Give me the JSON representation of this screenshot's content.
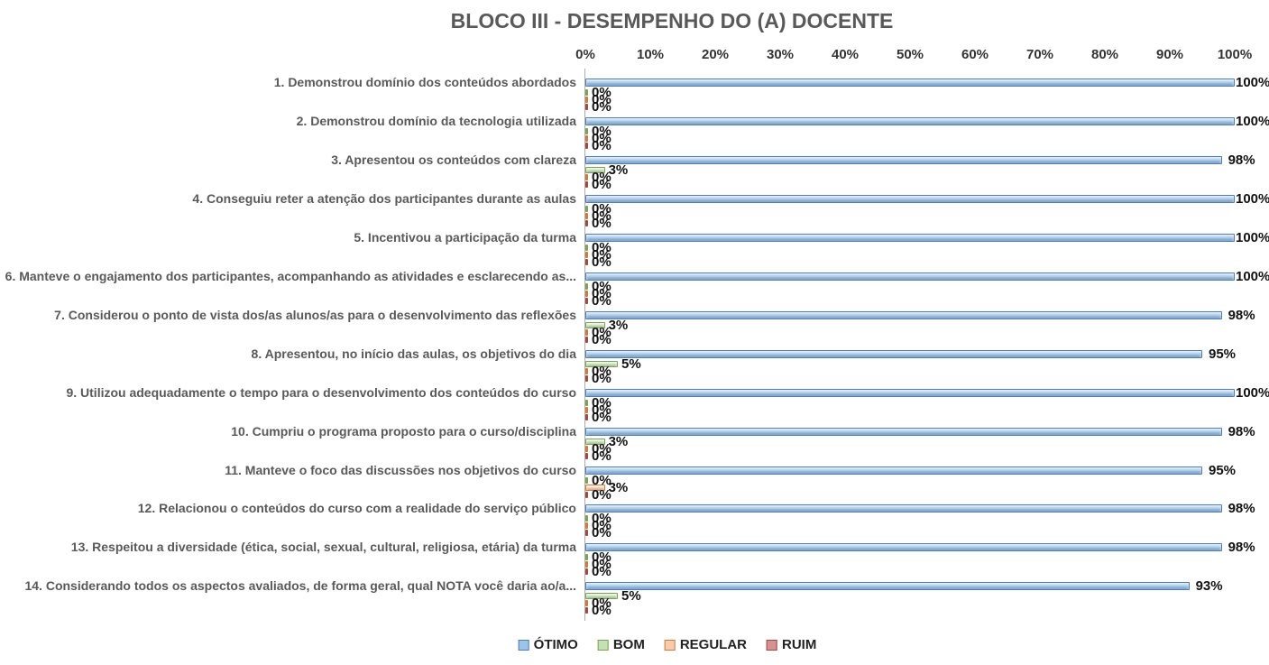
{
  "chart_data": {
    "type": "bar",
    "orientation": "horizontal",
    "title": "BLOCO III - DESEMPENHO DO (A) DOCENTE",
    "x_axis": {
      "min": 0,
      "max": 100,
      "unit": "%",
      "ticks": [
        "0%",
        "10%",
        "20%",
        "30%",
        "40%",
        "50%",
        "60%",
        "70%",
        "80%",
        "90%",
        "100%"
      ]
    },
    "grid": false,
    "legend_position": "bottom",
    "data_label_format": "{value}%",
    "categories": [
      "1. Demonstrou domínio dos conteúdos abordados",
      "2. Demonstrou domínio da tecnologia utilizada",
      "3. Apresentou os conteúdos com clareza",
      "4. Conseguiu reter a atenção dos participantes durante as aulas",
      "5. Incentivou a participação da turma",
      "6. Manteve o engajamento dos participantes, acompanhando as atividades e esclarecendo as...",
      "7. Considerou o ponto de vista dos/as alunos/as para o desenvolvimento das reflexões",
      "8. Apresentou, no início das aulas, os objetivos do dia",
      "9. Utilizou adequadamente o tempo para o desenvolvimento dos conteúdos do curso",
      "10. Cumpriu o programa proposto para o curso/disciplina",
      "11. Manteve o foco das discussões nos objetivos do curso",
      "12. Relacionou o conteúdos do curso com a realidade do serviço público",
      "13. Respeitou a diversidade (ética, social, sexual, cultural, religiosa, etária) da turma",
      "14. Considerando todos os aspectos avaliados, de forma geral, qual NOTA você daria ao/a..."
    ],
    "series": [
      {
        "name": "ÓTIMO",
        "color": "#9DC3E6",
        "border": "#4F7DBB",
        "values": [
          100,
          100,
          98,
          100,
          100,
          100,
          98,
          95,
          100,
          98,
          95,
          98,
          98,
          93
        ]
      },
      {
        "name": "BOM",
        "color": "#C5E0B4",
        "border": "#7DA255",
        "values": [
          0,
          0,
          3,
          0,
          0,
          0,
          3,
          5,
          0,
          3,
          0,
          0,
          0,
          5
        ]
      },
      {
        "name": "REGULAR",
        "color": "#F8CBAD",
        "border": "#CC7A3D",
        "values": [
          0,
          0,
          0,
          0,
          0,
          0,
          0,
          0,
          0,
          0,
          3,
          0,
          0,
          0
        ]
      },
      {
        "name": "RUIM",
        "color": "#D69292",
        "border": "#9C4A42",
        "values": [
          0,
          0,
          0,
          0,
          0,
          0,
          0,
          0,
          0,
          0,
          0,
          0,
          0,
          0
        ]
      }
    ]
  }
}
